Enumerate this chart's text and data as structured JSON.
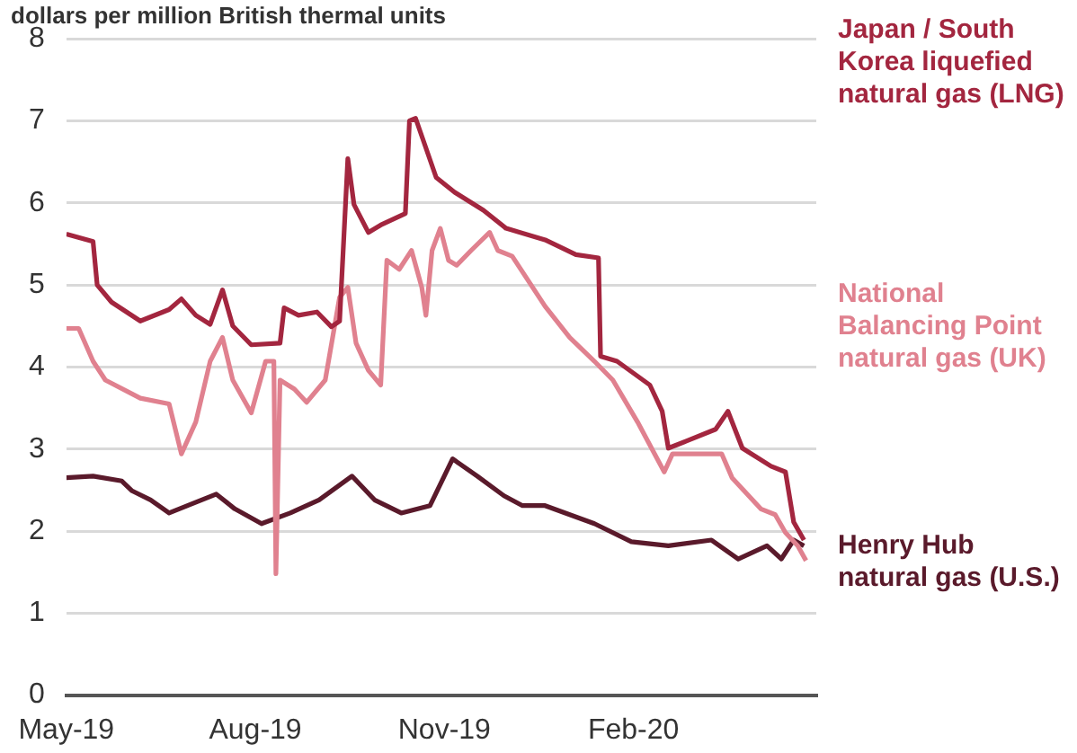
{
  "chart_data": {
    "type": "line",
    "ylabel": "dollars per million British thermal units",
    "legend": false,
    "grid": "y",
    "marker": "none",
    "line_style": "solid",
    "xlim": [
      "2019-05-01",
      "2020-04-30"
    ],
    "xticks": [
      {
        "value": "2019-05-01",
        "label": "May-19"
      },
      {
        "value": "2019-08-01",
        "label": "Aug-19"
      },
      {
        "value": "2019-11-01",
        "label": "Nov-19"
      },
      {
        "value": "2020-02-01",
        "label": "Feb-20"
      }
    ],
    "ylim": [
      0,
      8
    ],
    "yticks": [
      0,
      1,
      2,
      3,
      4,
      5,
      6,
      7,
      8
    ],
    "series": [
      {
        "name": "Japan / South Korea liquefied natural gas (LNG)",
        "color": "#a3263f",
        "x": [
          "2019-05-01",
          "2019-05-14",
          "2019-05-16",
          "2019-05-23",
          "2019-06-06",
          "2019-06-20",
          "2019-06-26",
          "2019-07-03",
          "2019-07-10",
          "2019-07-16",
          "2019-07-21",
          "2019-07-30",
          "2019-08-13",
          "2019-08-15",
          "2019-08-22",
          "2019-08-31",
          "2019-09-07",
          "2019-09-11",
          "2019-09-15",
          "2019-09-18",
          "2019-09-25",
          "2019-10-01",
          "2019-10-13",
          "2019-10-15",
          "2019-10-18",
          "2019-10-28",
          "2019-11-06",
          "2019-11-20",
          "2019-12-01",
          "2019-12-20",
          "2020-01-04",
          "2020-01-15",
          "2020-01-16",
          "2020-01-24",
          "2020-02-09",
          "2020-02-15",
          "2020-02-18",
          "2020-02-27",
          "2020-03-12",
          "2020-03-18",
          "2020-03-25",
          "2020-04-08",
          "2020-04-15",
          "2020-04-19",
          "2020-04-24"
        ],
        "values": [
          5.62,
          5.53,
          5.0,
          4.79,
          4.56,
          4.7,
          4.83,
          4.63,
          4.52,
          4.94,
          4.5,
          4.27,
          4.29,
          4.72,
          4.63,
          4.67,
          4.49,
          4.56,
          6.54,
          5.98,
          5.64,
          5.73,
          5.87,
          7.0,
          7.03,
          6.31,
          6.13,
          5.91,
          5.69,
          5.55,
          5.37,
          5.33,
          4.13,
          4.07,
          3.78,
          3.46,
          3.01,
          3.1,
          3.24,
          3.46,
          3.01,
          2.79,
          2.72,
          2.11,
          1.89
        ]
      },
      {
        "name": "National Balancing Point natural gas (UK)",
        "color": "#e0818f",
        "x": [
          "2019-05-01",
          "2019-05-07",
          "2019-05-14",
          "2019-05-20",
          "2019-06-06",
          "2019-06-20",
          "2019-06-26",
          "2019-07-03",
          "2019-07-10",
          "2019-07-16",
          "2019-07-21",
          "2019-07-30",
          "2019-08-06",
          "2019-08-10",
          "2019-08-11",
          "2019-08-13",
          "2019-08-20",
          "2019-08-26",
          "2019-09-04",
          "2019-09-11",
          "2019-09-15",
          "2019-09-19",
          "2019-09-25",
          "2019-10-01",
          "2019-10-04",
          "2019-10-10",
          "2019-10-16",
          "2019-10-21",
          "2019-10-23",
          "2019-10-26",
          "2019-10-30",
          "2019-11-03",
          "2019-11-07",
          "2019-11-14",
          "2019-11-23",
          "2019-11-27",
          "2019-12-04",
          "2019-12-20",
          "2020-01-01",
          "2020-01-13",
          "2020-01-22",
          "2020-02-03",
          "2020-02-16",
          "2020-02-20",
          "2020-03-15",
          "2020-03-20",
          "2020-04-03",
          "2020-04-10",
          "2020-04-15",
          "2020-04-21",
          "2020-04-25"
        ],
        "values": [
          4.47,
          4.47,
          4.07,
          3.84,
          3.62,
          3.55,
          2.94,
          3.33,
          4.07,
          4.36,
          3.84,
          3.44,
          4.07,
          4.07,
          1.48,
          3.84,
          3.73,
          3.57,
          3.84,
          4.85,
          4.97,
          4.29,
          3.96,
          3.78,
          5.3,
          5.19,
          5.42,
          4.97,
          4.63,
          5.42,
          5.69,
          5.3,
          5.24,
          5.42,
          5.64,
          5.42,
          5.35,
          4.74,
          4.36,
          4.07,
          3.84,
          3.33,
          2.72,
          2.94,
          2.94,
          2.65,
          2.27,
          2.2,
          1.98,
          1.82,
          1.64
        ]
      },
      {
        "name": "Henry Hub natural gas (U.S.)",
        "color": "#5a1a2b",
        "x": [
          "2019-05-01",
          "2019-05-14",
          "2019-05-28",
          "2019-06-02",
          "2019-06-11",
          "2019-06-20",
          "2019-06-29",
          "2019-07-13",
          "2019-07-22",
          "2019-08-04",
          "2019-08-18",
          "2019-09-01",
          "2019-09-17",
          "2019-09-28",
          "2019-10-11",
          "2019-10-25",
          "2019-11-05",
          "2019-11-17",
          "2019-11-30",
          "2019-12-09",
          "2019-12-20",
          "2020-01-13",
          "2020-01-31",
          "2020-02-18",
          "2020-03-10",
          "2020-03-23",
          "2020-04-06",
          "2020-04-13",
          "2020-04-19",
          "2020-04-24"
        ],
        "values": [
          2.65,
          2.67,
          2.61,
          2.49,
          2.38,
          2.22,
          2.31,
          2.45,
          2.27,
          2.09,
          2.22,
          2.38,
          2.67,
          2.38,
          2.22,
          2.31,
          2.88,
          2.67,
          2.43,
          2.31,
          2.31,
          2.09,
          1.87,
          1.82,
          1.89,
          1.66,
          1.82,
          1.66,
          1.89,
          1.82
        ]
      }
    ]
  }
}
